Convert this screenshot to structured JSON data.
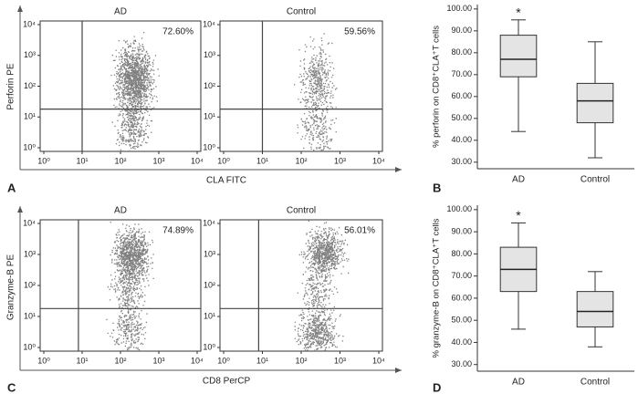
{
  "chart_data": [
    {
      "type": "scatter",
      "panel": "A",
      "title": "AD",
      "annotation": "72.60%",
      "xlabel": "CLA FITC",
      "ylabel": "Perforin PE",
      "log_scale": true,
      "xlim": [
        1,
        10000
      ],
      "ylim": [
        1,
        10000
      ],
      "gate_x": 10,
      "gate_y": 18,
      "color": "#808080",
      "xticks": [
        {
          "value": 1,
          "label": "10⁰"
        },
        {
          "value": 10,
          "label": "10¹"
        },
        {
          "value": 100,
          "label": "10²"
        },
        {
          "value": 1000,
          "label": "10³"
        },
        {
          "value": 10000,
          "label": "10⁴"
        }
      ],
      "yticks": [
        {
          "value": 1,
          "label": "10⁰"
        },
        {
          "value": 10,
          "label": "10¹"
        },
        {
          "value": 100,
          "label": "10²"
        },
        {
          "value": 1000,
          "label": "10³"
        },
        {
          "value": 10000,
          "label": "10⁴"
        }
      ]
    },
    {
      "type": "scatter",
      "title": "Control",
      "annotation": "59.56%",
      "log_scale": true,
      "xlim": [
        1,
        10000
      ],
      "ylim": [
        1,
        10000
      ],
      "gate_x": 10,
      "gate_y": 18,
      "color": "#808080",
      "xticks": [
        {
          "value": 1,
          "label": "10⁰"
        },
        {
          "value": 10,
          "label": "10¹"
        },
        {
          "value": 100,
          "label": "10²"
        },
        {
          "value": 1000,
          "label": "10³"
        },
        {
          "value": 10000,
          "label": "10⁴"
        }
      ],
      "yticks": [
        {
          "value": 1,
          "label": "10⁰"
        },
        {
          "value": 10,
          "label": "10¹"
        },
        {
          "value": 100,
          "label": "10²"
        },
        {
          "value": 1000,
          "label": "10³"
        },
        {
          "value": 10000,
          "label": "10⁴"
        }
      ]
    },
    {
      "type": "box",
      "panel": "B",
      "ylabel": "% perforin on CD8⁺CLA⁺T cells",
      "categories": [
        "AD",
        "Control"
      ],
      "annotation": "*",
      "color": "#e4e4e4",
      "ylim": [
        27,
        102
      ],
      "yticks": [
        {
          "value": 30,
          "label": "30.00"
        },
        {
          "value": 40,
          "label": "40.00"
        },
        {
          "value": 50,
          "label": "50.00"
        },
        {
          "value": 60,
          "label": "60.00"
        },
        {
          "value": 70,
          "label": "70.00"
        },
        {
          "value": 80,
          "label": "80.00"
        },
        {
          "value": 90,
          "label": "90.00"
        },
        {
          "value": 100,
          "label": "100.00"
        }
      ],
      "boxes": [
        {
          "min": 44,
          "q1": 69,
          "median": 77,
          "q3": 88,
          "max": 95
        },
        {
          "min": 32,
          "q1": 48,
          "median": 58,
          "q3": 66,
          "max": 85
        }
      ]
    },
    {
      "type": "scatter",
      "panel": "C",
      "title": "AD",
      "annotation": "74.89%",
      "xlabel": "CD8 PerCP",
      "ylabel": "Granzyme-B PE",
      "log_scale": true,
      "xlim": [
        1,
        10000
      ],
      "ylim": [
        1,
        10000
      ],
      "gate_x": 8,
      "gate_y": 18,
      "color": "#808080",
      "xticks": [
        {
          "value": 1,
          "label": "10⁰"
        },
        {
          "value": 10,
          "label": "10¹"
        },
        {
          "value": 100,
          "label": "10²"
        },
        {
          "value": 1000,
          "label": "10³"
        },
        {
          "value": 10000,
          "label": "10⁴"
        }
      ],
      "yticks": [
        {
          "value": 1,
          "label": "10⁰"
        },
        {
          "value": 10,
          "label": "10¹"
        },
        {
          "value": 100,
          "label": "10²"
        },
        {
          "value": 1000,
          "label": "10³"
        },
        {
          "value": 10000,
          "label": "10⁴"
        }
      ]
    },
    {
      "type": "scatter",
      "title": "Control",
      "annotation": "56.01%",
      "log_scale": true,
      "xlim": [
        1,
        10000
      ],
      "ylim": [
        1,
        10000
      ],
      "gate_x": 8,
      "gate_y": 18,
      "color": "#808080",
      "xticks": [
        {
          "value": 1,
          "label": "10⁰"
        },
        {
          "value": 10,
          "label": "10¹"
        },
        {
          "value": 100,
          "label": "10²"
        },
        {
          "value": 1000,
          "label": "10³"
        },
        {
          "value": 10000,
          "label": "10⁴"
        }
      ],
      "yticks": [
        {
          "value": 1,
          "label": "10⁰"
        },
        {
          "value": 10,
          "label": "10¹"
        },
        {
          "value": 100,
          "label": "10²"
        },
        {
          "value": 1000,
          "label": "10³"
        },
        {
          "value": 10000,
          "label": "10⁴"
        }
      ]
    },
    {
      "type": "box",
      "panel": "D",
      "ylabel": "% granzyme-B on CD8⁺CLA⁺T cells",
      "categories": [
        "AD",
        "Control"
      ],
      "annotation": "*",
      "color": "#e4e4e4",
      "ylim": [
        27,
        102
      ],
      "yticks": [
        {
          "value": 30,
          "label": "30.00"
        },
        {
          "value": 40,
          "label": "40.00"
        },
        {
          "value": 50,
          "label": "50.00"
        },
        {
          "value": 60,
          "label": "60.00"
        },
        {
          "value": 70,
          "label": "70.00"
        },
        {
          "value": 80,
          "label": "80.00"
        },
        {
          "value": 90,
          "label": "90.00"
        },
        {
          "value": 100,
          "label": "100.00"
        }
      ],
      "boxes": [
        {
          "min": 46,
          "q1": 63,
          "median": 73,
          "q3": 83,
          "max": 94
        },
        {
          "min": 38,
          "q1": 47,
          "median": 54,
          "q3": 63,
          "max": 72
        }
      ]
    }
  ]
}
